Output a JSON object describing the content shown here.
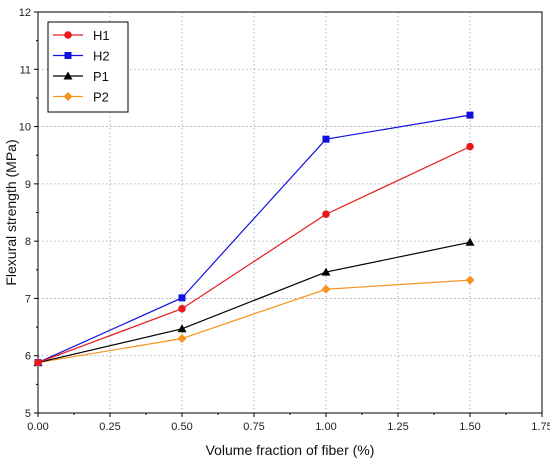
{
  "chart_data": {
    "type": "line",
    "title": "",
    "xlabel": "Volume fraction of fiber (%)",
    "ylabel": "Flexural strength (MPa)",
    "xlim": [
      0.0,
      1.75
    ],
    "ylim": [
      5,
      12
    ],
    "xticks": [
      "0.00",
      "0.25",
      "0.50",
      "0.75",
      "1.00",
      "1.25",
      "1.50",
      "1.75"
    ],
    "yticks": [
      "5",
      "6",
      "7",
      "8",
      "9",
      "10",
      "11",
      "12"
    ],
    "grid": true,
    "legend_position": "top-left",
    "x": [
      0.0,
      0.5,
      1.0,
      1.5
    ],
    "series": [
      {
        "name": "H1",
        "color": "#e8191c",
        "marker": "circle",
        "values": [
          5.88,
          6.82,
          8.47,
          9.65
        ]
      },
      {
        "name": "H2",
        "color": "#1010e0",
        "marker": "square",
        "values": [
          5.88,
          7.01,
          9.78,
          10.2
        ]
      },
      {
        "name": "P1",
        "color": "#000000",
        "marker": "triangle",
        "values": [
          5.88,
          6.47,
          7.46,
          7.98
        ]
      },
      {
        "name": "P2",
        "color": "#f7931e",
        "marker": "diamond",
        "values": [
          5.88,
          6.3,
          7.16,
          7.32
        ]
      }
    ]
  }
}
